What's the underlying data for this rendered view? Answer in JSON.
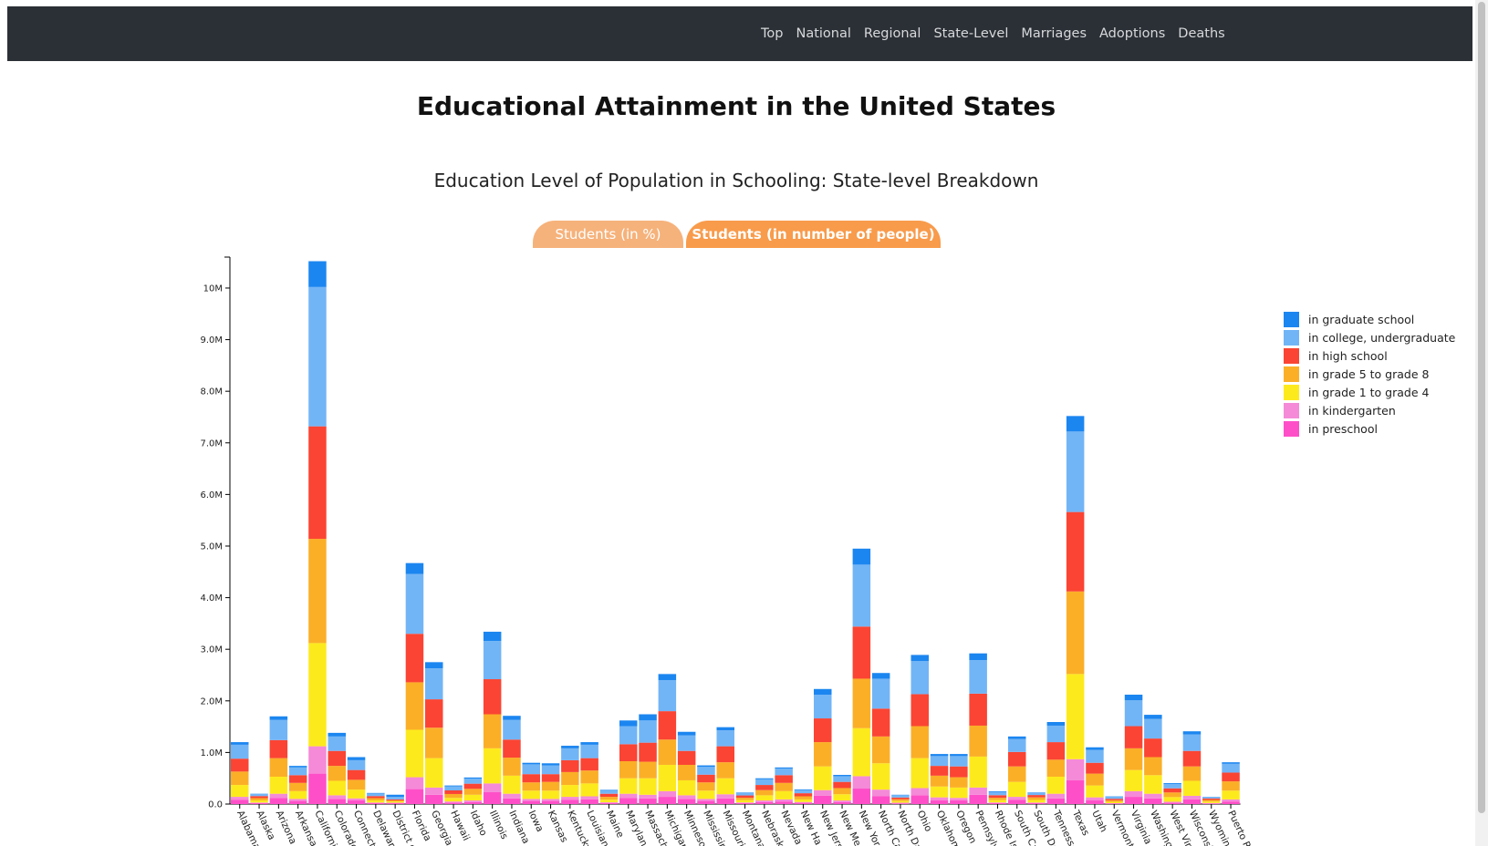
{
  "nav": {
    "items": [
      "Top",
      "National",
      "Regional",
      "State-Level",
      "Marriages",
      "Adoptions",
      "Deaths"
    ]
  },
  "header": {
    "title": "Educational Attainment in the United States"
  },
  "section": {
    "subtitle": "Education Level of Population in Schooling: State-level Breakdown",
    "tabs": [
      "Students (in %)",
      "Students (in number of people)"
    ],
    "active_tab": 1
  },
  "chart_data": {
    "type": "bar",
    "stacked": true,
    "ylim": [
      0,
      10600000
    ],
    "yticks": [
      0,
      1000000,
      2000000,
      3000000,
      4000000,
      5000000,
      6000000,
      7000000,
      8000000,
      9000000,
      10000000
    ],
    "ytick_labels": [
      "0.0",
      "1.0M",
      "2.0M",
      "3.0M",
      "4.0M",
      "5.0M",
      "6.0M",
      "7.0M",
      "8.0M",
      "9.0M",
      "10M"
    ],
    "legend_position": "right",
    "categories": [
      "Alabama",
      "Alaska",
      "Arizona",
      "Arkansas",
      "California",
      "Colorado",
      "Connecticut",
      "Delaware",
      "District of Columbia",
      "Florida",
      "Georgia",
      "Hawaii",
      "Idaho",
      "Illinois",
      "Indiana",
      "Iowa",
      "Kansas",
      "Kentucky",
      "Louisiana",
      "Maine",
      "Maryland",
      "Massachusetts",
      "Michigan",
      "Minnesota",
      "Mississippi",
      "Missouri",
      "Montana",
      "Nebraska",
      "Nevada",
      "New Hampshire",
      "New Jersey",
      "New Mexico",
      "New York",
      "North Carolina",
      "North Dakota",
      "Ohio",
      "Oklahoma",
      "Oregon",
      "Pennsylvania",
      "Rhode Island",
      "South Carolina",
      "South Dakota",
      "Tennessee",
      "Texas",
      "Utah",
      "Vermont",
      "Virginia",
      "Washington",
      "West Virginia",
      "Wisconsin",
      "Wyoming",
      "Puerto Rico"
    ],
    "category_labels": [
      "Alabama",
      "Alaska",
      "Arizona",
      "Arkansas",
      "California",
      "Colorado",
      "Connecti",
      "Delaware",
      "District o",
      "Florida",
      "Georgia",
      "Hawaii",
      "Idaho",
      "Illinois",
      "Indiana",
      "Iowa",
      "Kansas",
      "Kentucky",
      "Louisian",
      "Maine",
      "Marylan",
      "Massach",
      "Michigan",
      "Minneso",
      "Mississip",
      "Missouri",
      "Montana",
      "Nebrask",
      "Nevada",
      "New Ha",
      "New Jers",
      "New Me",
      "New Yor",
      "North Ca",
      "North Da",
      "Ohio",
      "Oklahom",
      "Oregon",
      "Pennsylv",
      "Rhode Is",
      "South Ca",
      "South Da",
      "Tennesse",
      "Texas",
      "Utah",
      "Vermont",
      "Virginia",
      "Washing",
      "West Vir",
      "Wisconsi",
      "Wyoming",
      "Puerto Ri"
    ],
    "series": [
      {
        "name": "in preschool",
        "color": "#ff4fc8",
        "values": [
          80000,
          20000,
          120000,
          60000,
          590000,
          100000,
          70000,
          18000,
          18000,
          290000,
          180000,
          30000,
          40000,
          230000,
          110000,
          60000,
          60000,
          80000,
          90000,
          20000,
          120000,
          110000,
          140000,
          100000,
          60000,
          110000,
          20000,
          40000,
          50000,
          25000,
          160000,
          40000,
          300000,
          150000,
          15000,
          170000,
          70000,
          70000,
          180000,
          20000,
          80000,
          18000,
          110000,
          460000,
          70000,
          10000,
          140000,
          110000,
          25000,
          90000,
          12000,
          50000
        ]
      },
      {
        "name": "in kindergarten",
        "color": "#f58ad8",
        "values": [
          60000,
          10000,
          80000,
          40000,
          530000,
          70000,
          40000,
          12000,
          8000,
          230000,
          140000,
          20000,
          30000,
          170000,
          90000,
          40000,
          40000,
          60000,
          60000,
          15000,
          80000,
          70000,
          110000,
          70000,
          40000,
          80000,
          12000,
          30000,
          40000,
          15000,
          110000,
          30000,
          240000,
          130000,
          12000,
          140000,
          60000,
          50000,
          140000,
          12000,
          60000,
          12000,
          90000,
          410000,
          60000,
          8000,
          110000,
          90000,
          20000,
          70000,
          8000,
          40000
        ]
      },
      {
        "name": "in grade 1 to grade 4",
        "color": "#fdea1d",
        "values": [
          230000,
          40000,
          330000,
          150000,
          2000000,
          280000,
          170000,
          40000,
          25000,
          920000,
          570000,
          70000,
          110000,
          680000,
          350000,
          160000,
          160000,
          230000,
          250000,
          50000,
          300000,
          320000,
          510000,
          290000,
          160000,
          310000,
          45000,
          100000,
          160000,
          50000,
          460000,
          120000,
          930000,
          510000,
          30000,
          580000,
          210000,
          200000,
          600000,
          45000,
          290000,
          50000,
          330000,
          1650000,
          230000,
          25000,
          410000,
          360000,
          90000,
          290000,
          30000,
          170000
        ]
      },
      {
        "name": "in grade 5 to grade 8",
        "color": "#fbaf27",
        "values": [
          260000,
          45000,
          360000,
          160000,
          2020000,
          290000,
          190000,
          45000,
          20000,
          920000,
          590000,
          75000,
          115000,
          660000,
          350000,
          160000,
          170000,
          250000,
          250000,
          55000,
          330000,
          320000,
          490000,
          300000,
          160000,
          310000,
          45000,
          100000,
          160000,
          60000,
          470000,
          120000,
          960000,
          520000,
          35000,
          620000,
          210000,
          200000,
          600000,
          45000,
          300000,
          50000,
          330000,
          1600000,
          230000,
          30000,
          420000,
          350000,
          90000,
          280000,
          30000,
          180000
        ]
      },
      {
        "name": "in high school",
        "color": "#fb4433",
        "values": [
          250000,
          40000,
          350000,
          150000,
          2180000,
          290000,
          190000,
          40000,
          20000,
          940000,
          550000,
          70000,
          100000,
          680000,
          350000,
          160000,
          150000,
          230000,
          240000,
          60000,
          330000,
          370000,
          550000,
          270000,
          150000,
          310000,
          45000,
          100000,
          150000,
          60000,
          460000,
          120000,
          1010000,
          540000,
          35000,
          620000,
          190000,
          210000,
          620000,
          50000,
          280000,
          45000,
          340000,
          1540000,
          210000,
          30000,
          430000,
          360000,
          80000,
          300000,
          30000,
          170000
        ]
      },
      {
        "name": "in college, undergraduate",
        "color": "#72b5f6",
        "values": [
          270000,
          40000,
          390000,
          150000,
          2700000,
          280000,
          190000,
          50000,
          50000,
          1160000,
          600000,
          80000,
          100000,
          740000,
          380000,
          190000,
          170000,
          230000,
          260000,
          60000,
          350000,
          430000,
          600000,
          300000,
          150000,
          310000,
          45000,
          110000,
          130000,
          60000,
          460000,
          110000,
          1200000,
          580000,
          45000,
          640000,
          190000,
          200000,
          650000,
          60000,
          250000,
          40000,
          320000,
          1560000,
          250000,
          35000,
          500000,
          380000,
          80000,
          320000,
          25000,
          170000
        ]
      },
      {
        "name": "in graduate school",
        "color": "#1c86f0",
        "values": [
          50000,
          5000,
          70000,
          30000,
          500000,
          70000,
          60000,
          10000,
          40000,
          210000,
          120000,
          15000,
          20000,
          180000,
          80000,
          30000,
          40000,
          50000,
          50000,
          15000,
          110000,
          120000,
          120000,
          70000,
          30000,
          60000,
          10000,
          20000,
          20000,
          15000,
          110000,
          25000,
          310000,
          110000,
          8000,
          120000,
          40000,
          40000,
          130000,
          15000,
          50000,
          10000,
          70000,
          300000,
          50000,
          10000,
          110000,
          80000,
          20000,
          60000,
          5000,
          30000
        ]
      }
    ]
  }
}
